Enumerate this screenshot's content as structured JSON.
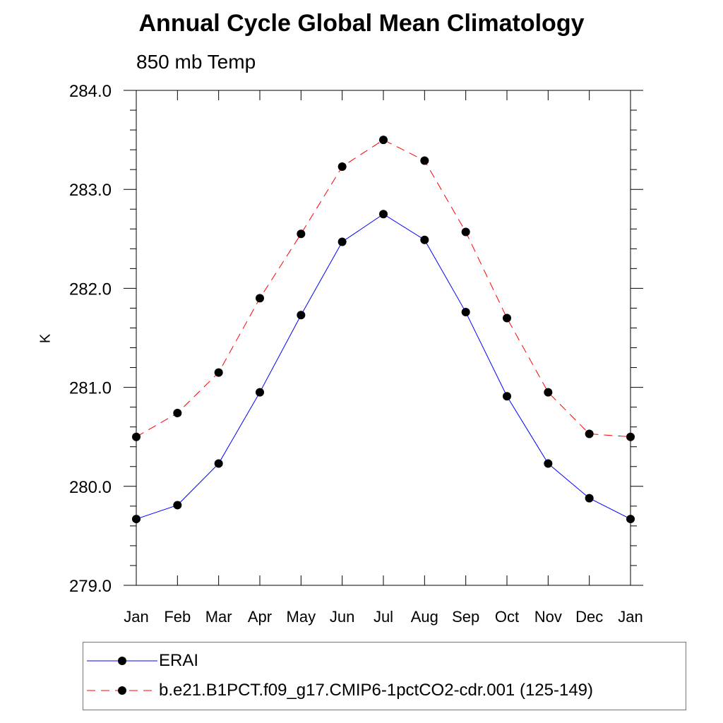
{
  "chart_data": {
    "type": "line",
    "title": "Annual Cycle Global Mean Climatology",
    "subtitle": "850 mb Temp",
    "ylabel": "K",
    "xlabel": "",
    "categories": [
      "Jan",
      "Feb",
      "Mar",
      "Apr",
      "May",
      "Jun",
      "Jul",
      "Aug",
      "Sep",
      "Oct",
      "Nov",
      "Dec",
      "Jan"
    ],
    "ylim": [
      279.0,
      284.0
    ],
    "yticks": [
      279.0,
      280.0,
      281.0,
      282.0,
      283.0,
      284.0
    ],
    "ytick_labels": [
      "279.0",
      "280.0",
      "281.0",
      "282.0",
      "283.0",
      "284.0"
    ],
    "series": [
      {
        "name": "ERAI",
        "color": "#0000ff",
        "dash": "solid",
        "values": [
          279.67,
          279.81,
          280.23,
          280.95,
          281.73,
          282.47,
          282.75,
          282.49,
          281.76,
          280.91,
          280.23,
          279.88,
          279.67
        ]
      },
      {
        "name": "b.e21.B1PCT.f09_g17.CMIP6-1pctCO2-cdr.001 (125-149)",
        "color": "#ff0000",
        "dash": "dashed",
        "values": [
          280.5,
          280.74,
          281.15,
          281.9,
          282.55,
          283.23,
          283.5,
          283.29,
          282.57,
          281.7,
          280.95,
          280.53,
          280.5
        ]
      }
    ],
    "legend_position": "bottom"
  }
}
